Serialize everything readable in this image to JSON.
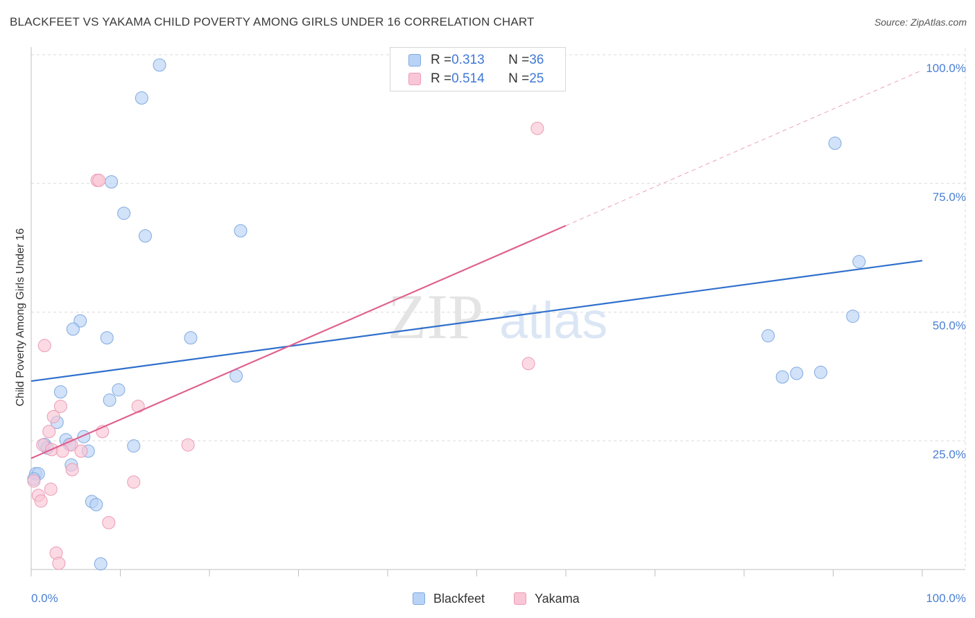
{
  "header": {
    "title": "BLACKFEET VS YAKAMA CHILD POVERTY AMONG GIRLS UNDER 16 CORRELATION CHART",
    "source": "Source: ZipAtlas.com"
  },
  "legend_top": {
    "rows": [
      {
        "r_label": "R = ",
        "r_value": "0.313",
        "n_label": "N = ",
        "n_value": "36"
      },
      {
        "r_label": "R = ",
        "r_value": "0.514",
        "n_label": "N = ",
        "n_value": "25"
      }
    ]
  },
  "legend_bottom": {
    "items": [
      "Blackfeet",
      "Yakama"
    ]
  },
  "watermark": {
    "zip": "ZIP",
    "atlas": "atlas"
  },
  "colors": {
    "blackfeet_fill": "#b8d3f6",
    "blackfeet_stroke": "#7fa9e0",
    "blackfeet_line": "#2f6fcc",
    "yakama_fill": "#f9c6d6",
    "yakama_stroke": "#ec9ab6",
    "yakama_line": "#e0608e",
    "axis_label": "#4a7fd4",
    "grid": "#d9d9d9"
  },
  "chart_data": {
    "type": "scatter",
    "title": "BLACKFEET VS YAKAMA CHILD POVERTY AMONG GIRLS UNDER 16 CORRELATION CHART",
    "xlabel": "",
    "ylabel": "Child Poverty Among Girls Under 16",
    "xlim": [
      0,
      100
    ],
    "ylim": [
      0,
      100
    ],
    "x_tick_labels": [
      "0.0%",
      "100.0%"
    ],
    "y_ticks": [
      {
        "value": 25,
        "label": "25.0%"
      },
      {
        "value": 50,
        "label": "50.0%"
      },
      {
        "value": 75,
        "label": "75.0%"
      },
      {
        "value": 100,
        "label": "100.0%"
      }
    ],
    "series": [
      {
        "name": "Blackfeet",
        "R": 0.313,
        "N": 36,
        "trend": {
          "x0": 0,
          "y0": 36.6,
          "x1": 100,
          "y1": 60.0,
          "dashed_after": null
        },
        "points": [
          [
            14.4,
            98.0
          ],
          [
            12.4,
            91.6
          ],
          [
            9.0,
            75.3
          ],
          [
            10.4,
            69.2
          ],
          [
            12.8,
            64.8
          ],
          [
            23.5,
            65.8
          ],
          [
            90.2,
            82.8
          ],
          [
            92.9,
            59.8
          ],
          [
            5.5,
            48.3
          ],
          [
            4.7,
            46.7
          ],
          [
            8.5,
            45.0
          ],
          [
            17.9,
            45.0
          ],
          [
            92.2,
            49.2
          ],
          [
            82.7,
            45.4
          ],
          [
            23.0,
            37.6
          ],
          [
            84.3,
            37.4
          ],
          [
            85.9,
            38.1
          ],
          [
            88.6,
            38.3
          ],
          [
            3.3,
            34.5
          ],
          [
            9.8,
            34.9
          ],
          [
            8.8,
            32.9
          ],
          [
            2.9,
            28.6
          ],
          [
            5.9,
            25.8
          ],
          [
            3.9,
            25.2
          ],
          [
            1.5,
            24.3
          ],
          [
            4.3,
            24.3
          ],
          [
            1.8,
            23.6
          ],
          [
            11.5,
            24.0
          ],
          [
            6.4,
            23.0
          ],
          [
            4.5,
            20.3
          ],
          [
            0.5,
            18.6
          ],
          [
            0.8,
            18.6
          ],
          [
            6.8,
            13.2
          ],
          [
            7.3,
            12.6
          ],
          [
            7.8,
            1.1
          ],
          [
            0.3,
            17.6
          ]
        ]
      },
      {
        "name": "Yakama",
        "R": 0.514,
        "N": 25,
        "trend": {
          "x0": 0,
          "y0": 21.6,
          "x1": 60,
          "y1": 66.8,
          "dashed_after": {
            "x1": 100,
            "y1": 97.0
          }
        },
        "points": [
          [
            56.8,
            85.7
          ],
          [
            7.4,
            75.6
          ],
          [
            7.6,
            75.6
          ],
          [
            1.5,
            43.5
          ],
          [
            55.8,
            40.0
          ],
          [
            3.3,
            31.7
          ],
          [
            12.0,
            31.7
          ],
          [
            2.5,
            29.7
          ],
          [
            2.0,
            26.8
          ],
          [
            8.0,
            26.8
          ],
          [
            1.3,
            24.2
          ],
          [
            4.5,
            24.2
          ],
          [
            17.6,
            24.2
          ],
          [
            2.3,
            23.3
          ],
          [
            3.5,
            23.0
          ],
          [
            5.6,
            23.0
          ],
          [
            4.6,
            19.4
          ],
          [
            11.5,
            17.0
          ],
          [
            0.3,
            17.2
          ],
          [
            2.2,
            15.6
          ],
          [
            0.8,
            14.4
          ],
          [
            1.1,
            13.3
          ],
          [
            8.7,
            9.1
          ],
          [
            2.8,
            3.2
          ],
          [
            3.1,
            1.2
          ]
        ]
      }
    ]
  }
}
